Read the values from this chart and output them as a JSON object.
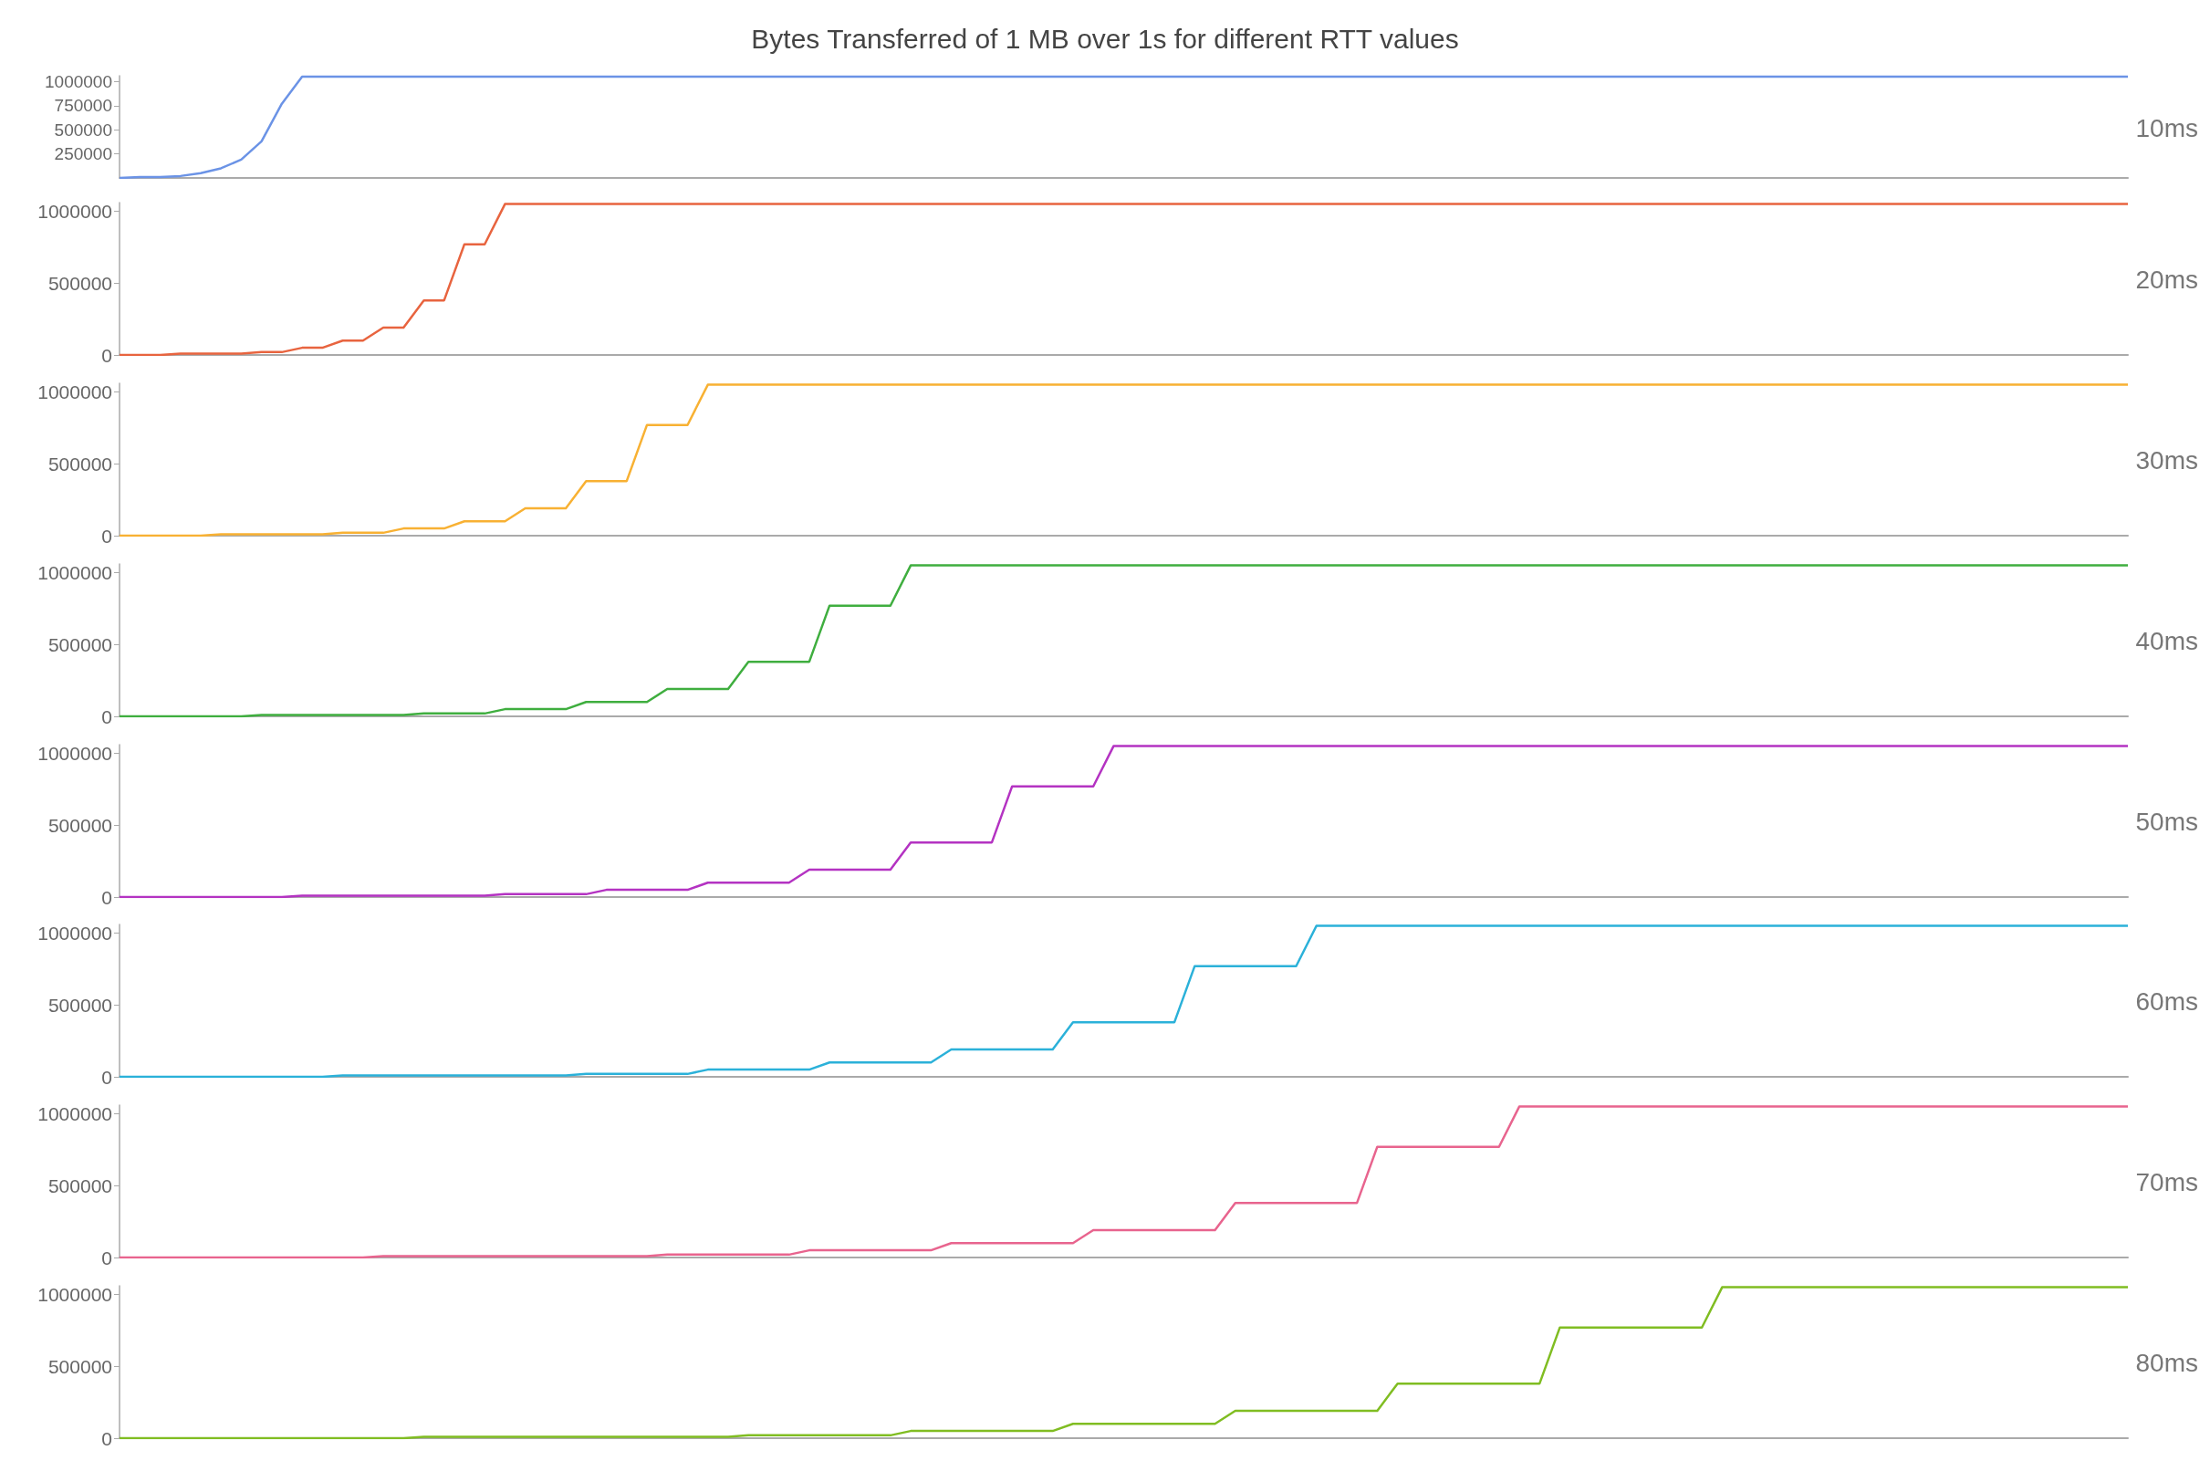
{
  "chart_data": [
    {
      "type": "line",
      "title": "Bytes Transferred of 1 MB over 1s for different RTT values",
      "tick_labels": "y",
      "marker": "none",
      "line_style": "solid",
      "grid": false,
      "ylim": [
        0,
        1060000
      ],
      "yticks": [
        250000,
        500000,
        750000,
        1000000
      ],
      "categories": [
        null,
        null,
        null,
        null,
        null,
        null,
        null,
        null,
        null,
        null,
        null,
        null,
        null,
        null,
        null,
        null,
        null,
        null,
        null,
        null,
        null,
        null,
        null,
        null,
        null,
        null,
        null,
        null,
        null,
        null,
        null,
        null,
        null,
        null,
        null,
        null,
        null,
        null,
        null,
        null,
        null,
        null,
        null,
        null,
        null,
        null,
        null,
        null,
        null,
        null,
        null,
        null,
        null,
        null,
        null,
        null,
        null,
        null,
        null,
        null,
        null,
        null,
        null,
        null,
        null,
        null,
        null,
        null,
        null,
        null,
        null,
        null,
        null,
        null,
        null,
        null,
        null,
        null,
        null,
        null,
        null,
        null,
        null,
        null,
        null,
        null,
        null,
        null,
        null,
        null,
        null,
        null,
        null,
        null,
        null,
        null,
        null,
        null,
        null,
        null
      ],
      "series": [
        {
          "name": "10ms",
          "color": "#6b93e6",
          "values": [
            0,
            10000,
            10000,
            20000,
            50000,
            100000,
            190000,
            380000,
            770000,
            1050000,
            1050000,
            1050000,
            1050000,
            1050000,
            1050000,
            1050000,
            1050000,
            1050000,
            1050000,
            1050000,
            1050000,
            1050000,
            1050000,
            1050000,
            1050000,
            1050000,
            1050000,
            1050000,
            1050000,
            1050000,
            1050000,
            1050000,
            1050000,
            1050000,
            1050000,
            1050000,
            1050000,
            1050000,
            1050000,
            1050000,
            1050000,
            1050000,
            1050000,
            1050000,
            1050000,
            1050000,
            1050000,
            1050000,
            1050000,
            1050000,
            1050000,
            1050000,
            1050000,
            1050000,
            1050000,
            1050000,
            1050000,
            1050000,
            1050000,
            1050000,
            1050000,
            1050000,
            1050000,
            1050000,
            1050000,
            1050000,
            1050000,
            1050000,
            1050000,
            1050000,
            1050000,
            1050000,
            1050000,
            1050000,
            1050000,
            1050000,
            1050000,
            1050000,
            1050000,
            1050000,
            1050000,
            1050000,
            1050000,
            1050000,
            1050000,
            1050000,
            1050000,
            1050000,
            1050000,
            1050000,
            1050000,
            1050000,
            1050000,
            1050000,
            1050000,
            1050000,
            1050000,
            1050000,
            1050000,
            1050000
          ]
        }
      ]
    },
    {
      "type": "line",
      "tick_labels": "y",
      "marker": "none",
      "line_style": "solid",
      "grid": false,
      "ylim": [
        0,
        1060000
      ],
      "yticks": [
        0,
        500000,
        1000000
      ],
      "categories": [
        null,
        null,
        null,
        null,
        null,
        null,
        null,
        null,
        null,
        null,
        null,
        null,
        null,
        null,
        null,
        null,
        null,
        null,
        null,
        null,
        null,
        null,
        null,
        null,
        null,
        null,
        null,
        null,
        null,
        null,
        null,
        null,
        null,
        null,
        null,
        null,
        null,
        null,
        null,
        null,
        null,
        null,
        null,
        null,
        null,
        null,
        null,
        null,
        null,
        null,
        null,
        null,
        null,
        null,
        null,
        null,
        null,
        null,
        null,
        null,
        null,
        null,
        null,
        null,
        null,
        null,
        null,
        null,
        null,
        null,
        null,
        null,
        null,
        null,
        null,
        null,
        null,
        null,
        null,
        null,
        null,
        null,
        null,
        null,
        null,
        null,
        null,
        null,
        null,
        null,
        null,
        null,
        null,
        null,
        null,
        null,
        null,
        null,
        null,
        null
      ],
      "series": [
        {
          "name": "20ms",
          "color": "#e8643f",
          "values": [
            0,
            0,
            0,
            10000,
            10000,
            10000,
            10000,
            20000,
            20000,
            50000,
            50000,
            100000,
            100000,
            190000,
            190000,
            380000,
            380000,
            770000,
            770000,
            1050000,
            1050000,
            1050000,
            1050000,
            1050000,
            1050000,
            1050000,
            1050000,
            1050000,
            1050000,
            1050000,
            1050000,
            1050000,
            1050000,
            1050000,
            1050000,
            1050000,
            1050000,
            1050000,
            1050000,
            1050000,
            1050000,
            1050000,
            1050000,
            1050000,
            1050000,
            1050000,
            1050000,
            1050000,
            1050000,
            1050000,
            1050000,
            1050000,
            1050000,
            1050000,
            1050000,
            1050000,
            1050000,
            1050000,
            1050000,
            1050000,
            1050000,
            1050000,
            1050000,
            1050000,
            1050000,
            1050000,
            1050000,
            1050000,
            1050000,
            1050000,
            1050000,
            1050000,
            1050000,
            1050000,
            1050000,
            1050000,
            1050000,
            1050000,
            1050000,
            1050000,
            1050000,
            1050000,
            1050000,
            1050000,
            1050000,
            1050000,
            1050000,
            1050000,
            1050000,
            1050000,
            1050000,
            1050000,
            1050000,
            1050000,
            1050000,
            1050000,
            1050000,
            1050000,
            1050000,
            1050000
          ]
        }
      ]
    },
    {
      "type": "line",
      "tick_labels": "y",
      "marker": "none",
      "line_style": "solid",
      "grid": false,
      "ylim": [
        0,
        1060000
      ],
      "yticks": [
        0,
        500000,
        1000000
      ],
      "categories": [
        null,
        null,
        null,
        null,
        null,
        null,
        null,
        null,
        null,
        null,
        null,
        null,
        null,
        null,
        null,
        null,
        null,
        null,
        null,
        null,
        null,
        null,
        null,
        null,
        null,
        null,
        null,
        null,
        null,
        null,
        null,
        null,
        null,
        null,
        null,
        null,
        null,
        null,
        null,
        null,
        null,
        null,
        null,
        null,
        null,
        null,
        null,
        null,
        null,
        null,
        null,
        null,
        null,
        null,
        null,
        null,
        null,
        null,
        null,
        null,
        null,
        null,
        null,
        null,
        null,
        null,
        null,
        null,
        null,
        null,
        null,
        null,
        null,
        null,
        null,
        null,
        null,
        null,
        null,
        null,
        null,
        null,
        null,
        null,
        null,
        null,
        null,
        null,
        null,
        null,
        null,
        null,
        null,
        null,
        null,
        null,
        null,
        null,
        null,
        null
      ],
      "series": [
        {
          "name": "30ms",
          "color": "#f8b133",
          "values": [
            0,
            0,
            0,
            0,
            0,
            10000,
            10000,
            10000,
            10000,
            10000,
            10000,
            20000,
            20000,
            20000,
            50000,
            50000,
            50000,
            100000,
            100000,
            100000,
            190000,
            190000,
            190000,
            380000,
            380000,
            380000,
            770000,
            770000,
            770000,
            1050000,
            1050000,
            1050000,
            1050000,
            1050000,
            1050000,
            1050000,
            1050000,
            1050000,
            1050000,
            1050000,
            1050000,
            1050000,
            1050000,
            1050000,
            1050000,
            1050000,
            1050000,
            1050000,
            1050000,
            1050000,
            1050000,
            1050000,
            1050000,
            1050000,
            1050000,
            1050000,
            1050000,
            1050000,
            1050000,
            1050000,
            1050000,
            1050000,
            1050000,
            1050000,
            1050000,
            1050000,
            1050000,
            1050000,
            1050000,
            1050000,
            1050000,
            1050000,
            1050000,
            1050000,
            1050000,
            1050000,
            1050000,
            1050000,
            1050000,
            1050000,
            1050000,
            1050000,
            1050000,
            1050000,
            1050000,
            1050000,
            1050000,
            1050000,
            1050000,
            1050000,
            1050000,
            1050000,
            1050000,
            1050000,
            1050000,
            1050000,
            1050000,
            1050000,
            1050000,
            1050000
          ]
        }
      ]
    },
    {
      "type": "line",
      "tick_labels": "y",
      "marker": "none",
      "line_style": "solid",
      "grid": false,
      "ylim": [
        0,
        1060000
      ],
      "yticks": [
        0,
        500000,
        1000000
      ],
      "categories": [
        null,
        null,
        null,
        null,
        null,
        null,
        null,
        null,
        null,
        null,
        null,
        null,
        null,
        null,
        null,
        null,
        null,
        null,
        null,
        null,
        null,
        null,
        null,
        null,
        null,
        null,
        null,
        null,
        null,
        null,
        null,
        null,
        null,
        null,
        null,
        null,
        null,
        null,
        null,
        null,
        null,
        null,
        null,
        null,
        null,
        null,
        null,
        null,
        null,
        null,
        null,
        null,
        null,
        null,
        null,
        null,
        null,
        null,
        null,
        null,
        null,
        null,
        null,
        null,
        null,
        null,
        null,
        null,
        null,
        null,
        null,
        null,
        null,
        null,
        null,
        null,
        null,
        null,
        null,
        null,
        null,
        null,
        null,
        null,
        null,
        null,
        null,
        null,
        null,
        null,
        null,
        null,
        null,
        null,
        null,
        null,
        null,
        null,
        null,
        null
      ],
      "series": [
        {
          "name": "40ms",
          "color": "#3fae3f",
          "values": [
            0,
            0,
            0,
            0,
            0,
            0,
            0,
            10000,
            10000,
            10000,
            10000,
            10000,
            10000,
            10000,
            10000,
            20000,
            20000,
            20000,
            20000,
            50000,
            50000,
            50000,
            50000,
            100000,
            100000,
            100000,
            100000,
            190000,
            190000,
            190000,
            190000,
            380000,
            380000,
            380000,
            380000,
            770000,
            770000,
            770000,
            770000,
            1050000,
            1050000,
            1050000,
            1050000,
            1050000,
            1050000,
            1050000,
            1050000,
            1050000,
            1050000,
            1050000,
            1050000,
            1050000,
            1050000,
            1050000,
            1050000,
            1050000,
            1050000,
            1050000,
            1050000,
            1050000,
            1050000,
            1050000,
            1050000,
            1050000,
            1050000,
            1050000,
            1050000,
            1050000,
            1050000,
            1050000,
            1050000,
            1050000,
            1050000,
            1050000,
            1050000,
            1050000,
            1050000,
            1050000,
            1050000,
            1050000,
            1050000,
            1050000,
            1050000,
            1050000,
            1050000,
            1050000,
            1050000,
            1050000,
            1050000,
            1050000,
            1050000,
            1050000,
            1050000,
            1050000,
            1050000,
            1050000,
            1050000,
            1050000,
            1050000,
            1050000
          ]
        }
      ]
    },
    {
      "type": "line",
      "tick_labels": "y",
      "marker": "none",
      "line_style": "solid",
      "grid": false,
      "ylim": [
        0,
        1060000
      ],
      "yticks": [
        0,
        500000,
        1000000
      ],
      "categories": [
        null,
        null,
        null,
        null,
        null,
        null,
        null,
        null,
        null,
        null,
        null,
        null,
        null,
        null,
        null,
        null,
        null,
        null,
        null,
        null,
        null,
        null,
        null,
        null,
        null,
        null,
        null,
        null,
        null,
        null,
        null,
        null,
        null,
        null,
        null,
        null,
        null,
        null,
        null,
        null,
        null,
        null,
        null,
        null,
        null,
        null,
        null,
        null,
        null,
        null,
        null,
        null,
        null,
        null,
        null,
        null,
        null,
        null,
        null,
        null,
        null,
        null,
        null,
        null,
        null,
        null,
        null,
        null,
        null,
        null,
        null,
        null,
        null,
        null,
        null,
        null,
        null,
        null,
        null,
        null,
        null,
        null,
        null,
        null,
        null,
        null,
        null,
        null,
        null,
        null,
        null,
        null,
        null,
        null,
        null,
        null,
        null,
        null,
        null,
        null
      ],
      "series": [
        {
          "name": "50ms",
          "color": "#b433c2",
          "values": [
            0,
            0,
            0,
            0,
            0,
            0,
            0,
            0,
            0,
            10000,
            10000,
            10000,
            10000,
            10000,
            10000,
            10000,
            10000,
            10000,
            10000,
            20000,
            20000,
            20000,
            20000,
            20000,
            50000,
            50000,
            50000,
            50000,
            50000,
            100000,
            100000,
            100000,
            100000,
            100000,
            190000,
            190000,
            190000,
            190000,
            190000,
            380000,
            380000,
            380000,
            380000,
            380000,
            770000,
            770000,
            770000,
            770000,
            770000,
            1050000,
            1050000,
            1050000,
            1050000,
            1050000,
            1050000,
            1050000,
            1050000,
            1050000,
            1050000,
            1050000,
            1050000,
            1050000,
            1050000,
            1050000,
            1050000,
            1050000,
            1050000,
            1050000,
            1050000,
            1050000,
            1050000,
            1050000,
            1050000,
            1050000,
            1050000,
            1050000,
            1050000,
            1050000,
            1050000,
            1050000,
            1050000,
            1050000,
            1050000,
            1050000,
            1050000,
            1050000,
            1050000,
            1050000,
            1050000,
            1050000,
            1050000,
            1050000,
            1050000,
            1050000,
            1050000,
            1050000,
            1050000,
            1050000,
            1050000,
            1050000
          ]
        }
      ]
    },
    {
      "type": "line",
      "tick_labels": "y",
      "marker": "none",
      "line_style": "solid",
      "grid": false,
      "ylim": [
        0,
        1060000
      ],
      "yticks": [
        0,
        500000,
        1000000
      ],
      "categories": [
        null,
        null,
        null,
        null,
        null,
        null,
        null,
        null,
        null,
        null,
        null,
        null,
        null,
        null,
        null,
        null,
        null,
        null,
        null,
        null,
        null,
        null,
        null,
        null,
        null,
        null,
        null,
        null,
        null,
        null,
        null,
        null,
        null,
        null,
        null,
        null,
        null,
        null,
        null,
        null,
        null,
        null,
        null,
        null,
        null,
        null,
        null,
        null,
        null,
        null,
        null,
        null,
        null,
        null,
        null,
        null,
        null,
        null,
        null,
        null,
        null,
        null,
        null,
        null,
        null,
        null,
        null,
        null,
        null,
        null,
        null,
        null,
        null,
        null,
        null,
        null,
        null,
        null,
        null,
        null,
        null,
        null,
        null,
        null,
        null,
        null,
        null,
        null,
        null,
        null,
        null,
        null,
        null,
        null,
        null,
        null,
        null,
        null,
        null,
        null
      ],
      "series": [
        {
          "name": "60ms",
          "color": "#2bb1d9",
          "values": [
            0,
            0,
            0,
            0,
            0,
            0,
            0,
            0,
            0,
            0,
            0,
            10000,
            10000,
            10000,
            10000,
            10000,
            10000,
            10000,
            10000,
            10000,
            10000,
            10000,
            10000,
            20000,
            20000,
            20000,
            20000,
            20000,
            20000,
            50000,
            50000,
            50000,
            50000,
            50000,
            50000,
            100000,
            100000,
            100000,
            100000,
            100000,
            100000,
            190000,
            190000,
            190000,
            190000,
            190000,
            190000,
            380000,
            380000,
            380000,
            380000,
            380000,
            380000,
            770000,
            770000,
            770000,
            770000,
            770000,
            770000,
            1050000,
            1050000,
            1050000,
            1050000,
            1050000,
            1050000,
            1050000,
            1050000,
            1050000,
            1050000,
            1050000,
            1050000,
            1050000,
            1050000,
            1050000,
            1050000,
            1050000,
            1050000,
            1050000,
            1050000,
            1050000,
            1050000,
            1050000,
            1050000,
            1050000,
            1050000,
            1050000,
            1050000,
            1050000,
            1050000,
            1050000,
            1050000,
            1050000,
            1050000,
            1050000,
            1050000,
            1050000,
            1050000,
            1050000,
            1050000,
            1050000
          ]
        }
      ]
    },
    {
      "type": "line",
      "tick_labels": "y",
      "marker": "none",
      "line_style": "solid",
      "grid": false,
      "ylim": [
        0,
        1060000
      ],
      "yticks": [
        0,
        500000,
        1000000
      ],
      "categories": [
        null,
        null,
        null,
        null,
        null,
        null,
        null,
        null,
        null,
        null,
        null,
        null,
        null,
        null,
        null,
        null,
        null,
        null,
        null,
        null,
        null,
        null,
        null,
        null,
        null,
        null,
        null,
        null,
        null,
        null,
        null,
        null,
        null,
        null,
        null,
        null,
        null,
        null,
        null,
        null,
        null,
        null,
        null,
        null,
        null,
        null,
        null,
        null,
        null,
        null,
        null,
        null,
        null,
        null,
        null,
        null,
        null,
        null,
        null,
        null,
        null,
        null,
        null,
        null,
        null,
        null,
        null,
        null,
        null,
        null,
        null,
        null,
        null,
        null,
        null,
        null,
        null,
        null,
        null,
        null,
        null,
        null,
        null,
        null,
        null,
        null,
        null,
        null,
        null,
        null,
        null,
        null,
        null,
        null,
        null,
        null,
        null,
        null,
        null,
        null
      ],
      "series": [
        {
          "name": "70ms",
          "color": "#e8648e",
          "values": [
            0,
            0,
            0,
            0,
            0,
            0,
            0,
            0,
            0,
            0,
            0,
            0,
            0,
            10000,
            10000,
            10000,
            10000,
            10000,
            10000,
            10000,
            10000,
            10000,
            10000,
            10000,
            10000,
            10000,
            10000,
            20000,
            20000,
            20000,
            20000,
            20000,
            20000,
            20000,
            50000,
            50000,
            50000,
            50000,
            50000,
            50000,
            50000,
            100000,
            100000,
            100000,
            100000,
            100000,
            100000,
            100000,
            190000,
            190000,
            190000,
            190000,
            190000,
            190000,
            190000,
            380000,
            380000,
            380000,
            380000,
            380000,
            380000,
            380000,
            770000,
            770000,
            770000,
            770000,
            770000,
            770000,
            770000,
            1050000,
            1050000,
            1050000,
            1050000,
            1050000,
            1050000,
            1050000,
            1050000,
            1050000,
            1050000,
            1050000,
            1050000,
            1050000,
            1050000,
            1050000,
            1050000,
            1050000,
            1050000,
            1050000,
            1050000,
            1050000,
            1050000,
            1050000,
            1050000,
            1050000,
            1050000,
            1050000,
            1050000,
            1050000,
            1050000,
            1050000
          ]
        }
      ]
    },
    {
      "type": "line",
      "tick_labels": "y",
      "marker": "none",
      "line_style": "solid",
      "grid": false,
      "ylim": [
        0,
        1060000
      ],
      "yticks": [
        0,
        500000,
        1000000
      ],
      "categories": [
        null,
        null,
        null,
        null,
        null,
        null,
        null,
        null,
        null,
        null,
        null,
        null,
        null,
        null,
        null,
        null,
        null,
        null,
        null,
        null,
        null,
        null,
        null,
        null,
        null,
        null,
        null,
        null,
        null,
        null,
        null,
        null,
        null,
        null,
        null,
        null,
        null,
        null,
        null,
        null,
        null,
        null,
        null,
        null,
        null,
        null,
        null,
        null,
        null,
        null,
        null,
        null,
        null,
        null,
        null,
        null,
        null,
        null,
        null,
        null,
        null,
        null,
        null,
        null,
        null,
        null,
        null,
        null,
        null,
        null,
        null,
        null,
        null,
        null,
        null,
        null,
        null,
        null,
        null,
        null,
        null,
        null,
        null,
        null,
        null,
        null,
        null,
        null,
        null,
        null,
        null,
        null,
        null,
        null,
        null,
        null,
        null,
        null,
        null,
        null
      ],
      "series": [
        {
          "name": "80ms",
          "color": "#80bd22",
          "values": [
            0,
            0,
            0,
            0,
            0,
            0,
            0,
            0,
            0,
            0,
            0,
            0,
            0,
            0,
            0,
            10000,
            10000,
            10000,
            10000,
            10000,
            10000,
            10000,
            10000,
            10000,
            10000,
            10000,
            10000,
            10000,
            10000,
            10000,
            10000,
            20000,
            20000,
            20000,
            20000,
            20000,
            20000,
            20000,
            20000,
            50000,
            50000,
            50000,
            50000,
            50000,
            50000,
            50000,
            50000,
            100000,
            100000,
            100000,
            100000,
            100000,
            100000,
            100000,
            100000,
            190000,
            190000,
            190000,
            190000,
            190000,
            190000,
            190000,
            190000,
            380000,
            380000,
            380000,
            380000,
            380000,
            380000,
            380000,
            380000,
            770000,
            770000,
            770000,
            770000,
            770000,
            770000,
            770000,
            770000,
            1050000,
            1050000,
            1050000,
            1050000,
            1050000,
            1050000,
            1050000,
            1050000,
            1050000,
            1050000,
            1050000,
            1050000,
            1050000,
            1050000,
            1050000,
            1050000,
            1050000,
            1050000,
            1050000,
            1050000,
            1050000
          ]
        }
      ]
    }
  ]
}
